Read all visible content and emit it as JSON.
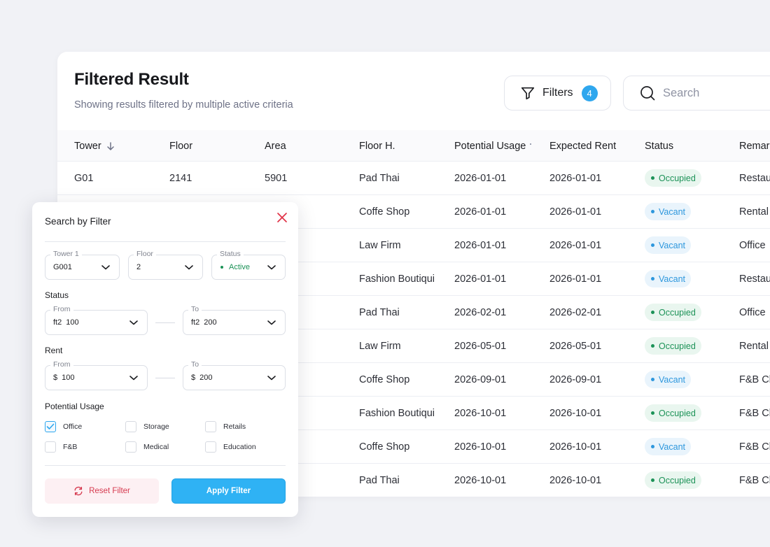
{
  "header": {
    "title": "Filtered Result",
    "subtitle": "Showing results filtered by multiple active criteria",
    "filters_label": "Filters",
    "filters_count": "4",
    "search_placeholder": "Search"
  },
  "table": {
    "columns": [
      "Tower",
      "Floor",
      "Area",
      "Floor H.",
      "Potential Usage",
      "Expected Rent",
      "Status",
      "Remarks"
    ],
    "rows": [
      {
        "tower": "G01",
        "floor": "2141",
        "area": "5901",
        "floor_h": "Pad Thai",
        "potential_usage": "2026-01-01",
        "expected_rent": "2026-01-01",
        "status": "Occupied",
        "remarks": "Restaurant"
      },
      {
        "tower": "",
        "floor": "",
        "area": "",
        "floor_h": "Coffe Shop",
        "potential_usage": "2026-01-01",
        "expected_rent": "2026-01-01",
        "status": "Vacant",
        "remarks": "Rental"
      },
      {
        "tower": "",
        "floor": "",
        "area": "",
        "floor_h": "Law Firm",
        "potential_usage": "2026-01-01",
        "expected_rent": "2026-01-01",
        "status": "Vacant",
        "remarks": "Office"
      },
      {
        "tower": "",
        "floor": "",
        "area": "",
        "floor_h": "Fashion Boutiqui",
        "potential_usage": "2026-01-01",
        "expected_rent": "2026-01-01",
        "status": "Vacant",
        "remarks": "Restaurant"
      },
      {
        "tower": "",
        "floor": "",
        "area": "",
        "floor_h": "Pad Thai",
        "potential_usage": "2026-02-01",
        "expected_rent": "2026-02-01",
        "status": "Occupied",
        "remarks": "Office"
      },
      {
        "tower": "",
        "floor": "",
        "area": "",
        "floor_h": "Law Firm",
        "potential_usage": "2026-05-01",
        "expected_rent": "2026-05-01",
        "status": "Occupied",
        "remarks": "Rental"
      },
      {
        "tower": "",
        "floor": "",
        "area": "",
        "floor_h": "Coffe Shop",
        "potential_usage": "2026-09-01",
        "expected_rent": "2026-09-01",
        "status": "Vacant",
        "remarks": "F&B Clinic"
      },
      {
        "tower": "",
        "floor": "",
        "area": "",
        "floor_h": "Fashion Boutiqui",
        "potential_usage": "2026-10-01",
        "expected_rent": "2026-10-01",
        "status": "Occupied",
        "remarks": "F&B Clinic"
      },
      {
        "tower": "",
        "floor": "",
        "area": "",
        "floor_h": "Coffe Shop",
        "potential_usage": "2026-10-01",
        "expected_rent": "2026-10-01",
        "status": "Vacant",
        "remarks": "F&B Clinic"
      },
      {
        "tower": "",
        "floor": "",
        "area": "",
        "floor_h": "Pad Thai",
        "potential_usage": "2026-10-01",
        "expected_rent": "2026-10-01",
        "status": "Occupied",
        "remarks": "F&B Clinic"
      }
    ]
  },
  "panel": {
    "title": "Search by Filter",
    "tower": {
      "label": "Tower 1",
      "value": "G001"
    },
    "floor": {
      "label": "Floor",
      "value": "2"
    },
    "status": {
      "label": "Status",
      "value": "Active"
    },
    "area_section": "Status",
    "area_from": {
      "label": "From",
      "prefix": "ft2",
      "value": "100"
    },
    "area_to": {
      "label": "To",
      "prefix": "ft2",
      "value": "200"
    },
    "rent_section": "Rent",
    "rent_from": {
      "label": "From",
      "prefix": "$",
      "value": "100"
    },
    "rent_to": {
      "label": "To",
      "prefix": "$",
      "value": "200"
    },
    "usage_section": "Potential Usage",
    "usage_options": [
      {
        "label": "Office",
        "checked": true
      },
      {
        "label": "Storage",
        "checked": false
      },
      {
        "label": "Retails",
        "checked": false
      },
      {
        "label": "F&B",
        "checked": false
      },
      {
        "label": "Medical",
        "checked": false
      },
      {
        "label": "Education",
        "checked": false
      }
    ],
    "reset_label": "Reset Filter",
    "apply_label": "Apply Filter"
  },
  "colors": {
    "accent": "#2fb2f4",
    "occupied": "#1c9257",
    "vacant": "#2d97dd",
    "danger": "#d63a4f"
  }
}
